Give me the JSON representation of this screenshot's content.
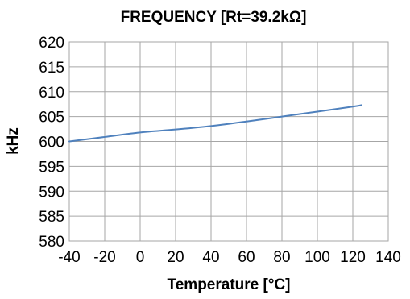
{
  "chart_data": {
    "type": "line",
    "title": "FREQUENCY [Rt=39.2kΩ]",
    "xlabel": "Temperature [°C]",
    "ylabel": "kHz",
    "xlim": [
      -40,
      140
    ],
    "ylim": [
      580,
      620
    ],
    "xticks": [
      -40,
      -20,
      0,
      20,
      40,
      60,
      80,
      100,
      120,
      140
    ],
    "yticks": [
      580,
      585,
      590,
      595,
      600,
      605,
      610,
      615,
      620
    ],
    "grid": true,
    "legend": "none",
    "series": [
      {
        "color": "#4f81bd",
        "x": [
          -40,
          -20,
          0,
          20,
          40,
          60,
          80,
          100,
          120,
          125
        ],
        "y": [
          600.0,
          600.9,
          601.8,
          602.4,
          603.1,
          604.0,
          605.0,
          606.0,
          607.0,
          607.3
        ]
      }
    ]
  }
}
